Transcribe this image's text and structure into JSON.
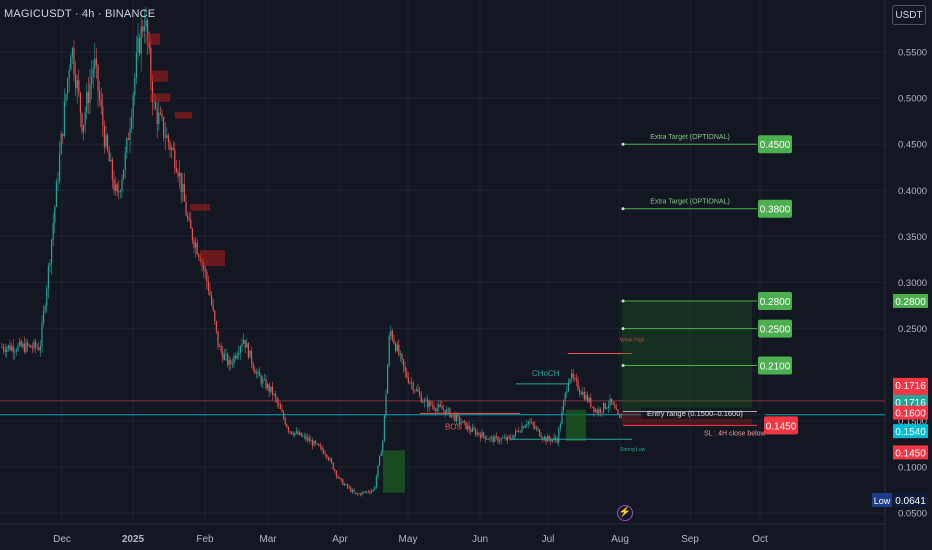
{
  "header": {
    "symbol_line": "MAGICUSDT · 4h · BINANCE"
  },
  "currency_button": "USDT",
  "colors": {
    "bg": "#131722",
    "grid": "#1f2330",
    "up": "#26a69a",
    "down": "#ef5350",
    "green_target": "#4caf50",
    "red_sl": "#f23645",
    "cyan": "#00bcd4"
  },
  "chart_data": {
    "type": "candlestick",
    "x_ticks": [
      "Dec",
      "2025",
      "Feb",
      "Mar",
      "Apr",
      "May",
      "Jun",
      "Jul",
      "Aug",
      "Sep",
      "Oct"
    ],
    "y_ticks": [
      "0.5500",
      "0.5000",
      "0.4500",
      "0.4000",
      "0.3500",
      "0.3000",
      "0.2500",
      "0.1500",
      "0.1000",
      "0.0500"
    ],
    "ylim": [
      0.045,
      0.59
    ],
    "price_path": [
      [
        "Nov 20",
        0.23
      ],
      [
        "Nov 25",
        0.33
      ],
      [
        "Nov 30",
        0.44
      ],
      [
        "Dec 05",
        0.56
      ],
      [
        "Dec 10",
        0.47
      ],
      [
        "Dec 15",
        0.54
      ],
      [
        "Dec 20",
        0.45
      ],
      [
        "Dec 25",
        0.39
      ],
      [
        "Dec 29",
        0.44
      ],
      [
        "Jan 03",
        0.55
      ],
      [
        "Jan 06",
        0.59
      ],
      [
        "Jan 10",
        0.49
      ],
      [
        "Jan 15",
        0.46
      ],
      [
        "Jan 20",
        0.43
      ],
      [
        "Jan 25",
        0.36
      ],
      [
        "Jan 30",
        0.33
      ],
      [
        "Feb 03",
        0.29
      ],
      [
        "Feb 07",
        0.23
      ],
      [
        "Feb 12",
        0.21
      ],
      [
        "Feb 18",
        0.24
      ],
      [
        "Feb 24",
        0.2
      ],
      [
        "Mar 03",
        0.18
      ],
      [
        "Mar 10",
        0.14
      ],
      [
        "Mar 18",
        0.13
      ],
      [
        "Mar 26",
        0.115
      ],
      [
        "Apr 01",
        0.085
      ],
      [
        "Apr 08",
        0.07
      ],
      [
        "Apr 16",
        0.075
      ],
      [
        "Apr 20",
        0.13
      ],
      [
        "Apr 23",
        0.25
      ],
      [
        "Apr 30",
        0.2
      ],
      [
        "May 08",
        0.17
      ],
      [
        "May 18",
        0.16
      ],
      [
        "May 28",
        0.14
      ],
      [
        "Jun 06",
        0.13
      ],
      [
        "Jun 14",
        0.13
      ],
      [
        "Jun 22",
        0.15
      ],
      [
        "Jun 30",
        0.13
      ],
      [
        "Jul 05",
        0.13
      ],
      [
        "Jul 10",
        0.2
      ],
      [
        "Jul 16",
        0.18
      ],
      [
        "Jul 22",
        0.16
      ],
      [
        "Jul 28",
        0.17
      ],
      [
        "Aug 01",
        0.15
      ],
      [
        "Aug 03",
        0.172
      ]
    ],
    "targets": [
      {
        "label": "Extra Target (OPTIONAL)",
        "value": 0.45,
        "tag": "0.4500"
      },
      {
        "label": "Extra Target (OPTIONAL)",
        "value": 0.38,
        "tag": "0.3800"
      },
      {
        "value": 0.28,
        "tag": "0.2800"
      },
      {
        "value": 0.25,
        "tag": "0.2500"
      },
      {
        "value": 0.21,
        "tag": "0.2100"
      }
    ],
    "entry": {
      "label": "Entry range   (0.1500–0.1600)",
      "low": 0.15,
      "high": 0.16
    },
    "stop_loss": {
      "label": "SL : 4H close below",
      "value": 0.145,
      "tag": "0.1450"
    },
    "annotations": [
      "CHoCH",
      "BOS",
      "Weak High",
      "Strong Low"
    ],
    "axis_tags": [
      {
        "text": "0.2800",
        "value": 0.28,
        "color": "#4caf50"
      },
      {
        "text": "0.1716",
        "value": 0.1716,
        "color": "#f23645",
        "sub": "07:09"
      },
      {
        "text": "0.1716",
        "value": 0.1716,
        "color": "#26a69a"
      },
      {
        "text": "0.1600",
        "value": 0.16,
        "color": "#f23645"
      },
      {
        "text": "0.1540",
        "value": 0.154,
        "color": "#00bcd4"
      },
      {
        "text": "0.1450",
        "value": 0.145,
        "color": "#f23645"
      }
    ],
    "low_label": {
      "name": "Low",
      "value": "0.0641"
    }
  }
}
